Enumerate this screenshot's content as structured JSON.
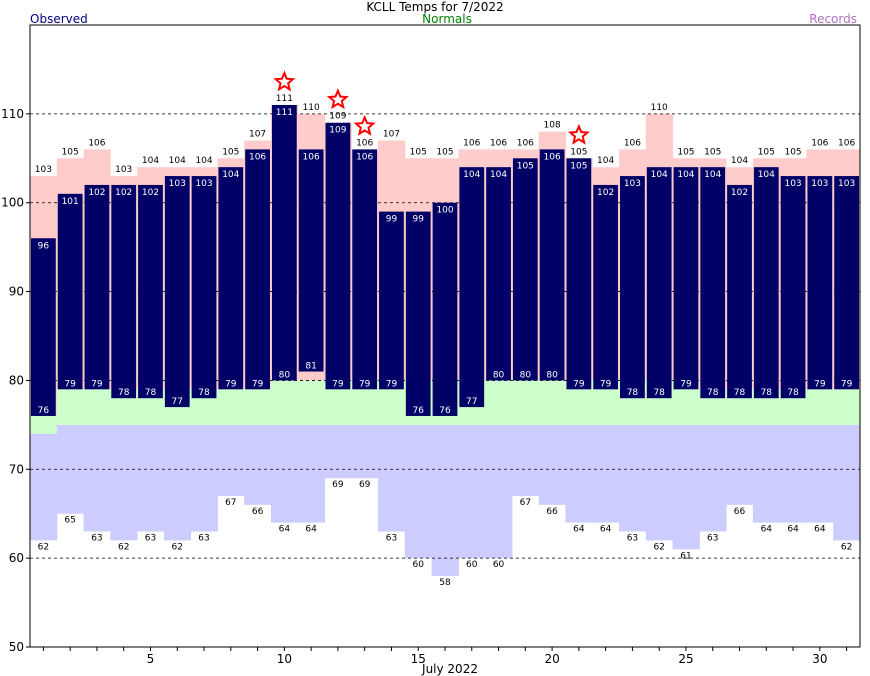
{
  "chart_data": {
    "type": "bar",
    "title": "KCLL Temps for 7/2022",
    "xlabel": "July 2022",
    "ylabel": "",
    "ylim": [
      50,
      120
    ],
    "y_ticks": [
      50,
      60,
      70,
      80,
      90,
      100,
      110
    ],
    "x_ticks": [
      5,
      10,
      15,
      20,
      25,
      30
    ],
    "grid": "horizontal dashed",
    "legend": [
      "Observed",
      "Normals",
      "Records"
    ],
    "days": [
      1,
      2,
      3,
      4,
      5,
      6,
      7,
      8,
      9,
      10,
      11,
      12,
      13,
      14,
      15,
      16,
      17,
      18,
      19,
      20,
      21,
      22,
      23,
      24,
      25,
      26,
      27,
      28,
      29,
      30,
      31
    ],
    "series": [
      {
        "name": "Observed",
        "high": [
          96,
          101,
          102,
          102,
          102,
          103,
          103,
          104,
          106,
          111,
          106,
          109,
          106,
          99,
          99,
          100,
          104,
          104,
          105,
          106,
          105,
          102,
          103,
          104,
          104,
          104,
          102,
          104,
          103,
          103,
          103
        ],
        "low": [
          76,
          79,
          79,
          78,
          78,
          77,
          78,
          79,
          79,
          80,
          81,
          79,
          79,
          79,
          76,
          76,
          77,
          80,
          80,
          80,
          79,
          79,
          78,
          78,
          79,
          78,
          78,
          78,
          78,
          79,
          79
        ]
      },
      {
        "name": "Normals",
        "high": [
          76,
          79,
          79,
          79,
          79,
          79,
          79,
          79,
          79,
          80,
          80,
          80,
          80,
          80,
          80,
          80,
          80,
          80,
          80,
          80,
          80,
          80,
          80,
          80,
          80,
          79,
          79,
          79,
          79,
          79,
          79
        ],
        "low": [
          74,
          75,
          75,
          75,
          75,
          75,
          75,
          75,
          75,
          75,
          75,
          75,
          75,
          75,
          75,
          75,
          75,
          75,
          75,
          75,
          75,
          75,
          75,
          75,
          75,
          75,
          75,
          75,
          75,
          75,
          75
        ]
      },
      {
        "name": "Records",
        "high": [
          103,
          105,
          106,
          103,
          104,
          104,
          104,
          105,
          107,
          111,
          110,
          109,
          106,
          107,
          105,
          105,
          106,
          106,
          106,
          108,
          105,
          104,
          106,
          110,
          105,
          105,
          104,
          105,
          105,
          106,
          106
        ],
        "low": [
          62,
          65,
          63,
          62,
          63,
          62,
          63,
          67,
          66,
          64,
          64,
          69,
          69,
          63,
          60,
          58,
          60,
          60,
          67,
          66,
          64,
          64,
          63,
          62,
          61,
          63,
          66,
          64,
          64,
          64,
          62
        ]
      }
    ],
    "record_stars": [
      10,
      12,
      13,
      21
    ],
    "colors": {
      "observed": "#000066",
      "normal": "#ccffcc",
      "record_high": "#ffcccc",
      "record_low": "#ccccff",
      "star": "#ff0000",
      "legend_observed": "#000080",
      "legend_normals": "#008000",
      "legend_records": "#b070c0"
    }
  }
}
